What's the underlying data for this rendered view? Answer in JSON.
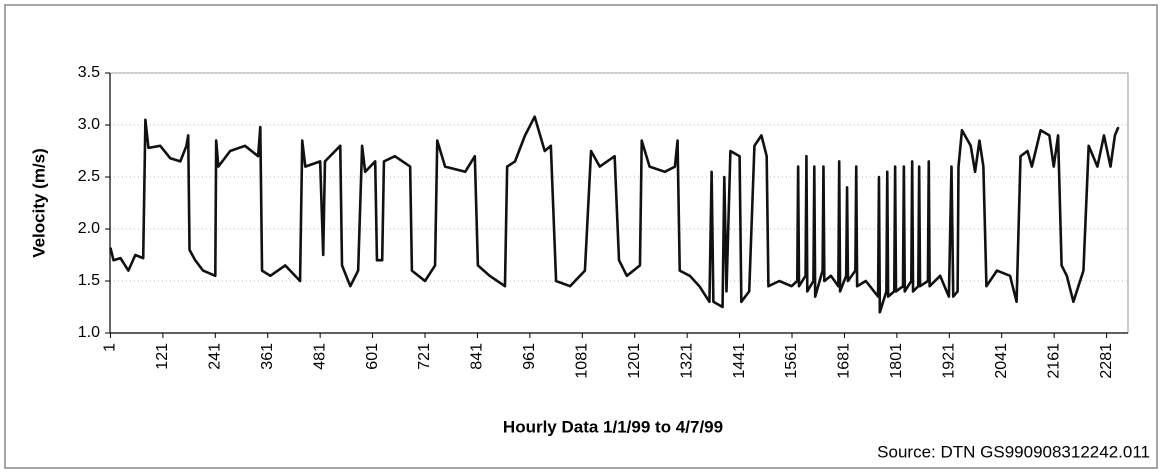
{
  "chart_data": {
    "type": "line",
    "y_label": "Velocity (m/s)",
    "x_label": "Hourly Data 1/1/99 to 4/7/99",
    "source": "Source: DTN GS990908312242.011",
    "xlim": [
      0,
      2330
    ],
    "ylim": [
      1.0,
      3.5
    ],
    "xticks": [
      1,
      121,
      241,
      361,
      481,
      601,
      721,
      841,
      961,
      1081,
      1201,
      1321,
      1441,
      1561,
      1681,
      1801,
      1921,
      2041,
      2161,
      2281
    ],
    "yticks": [
      {
        "value": 1.0,
        "label": "1.0"
      },
      1.5,
      {
        "value": 2.0,
        "label": "2.0"
      },
      2.5,
      {
        "value": 3.0,
        "label": "3.0"
      },
      3.5
    ],
    "grid": true,
    "series": [
      {
        "color": "#111111",
        "x": [
          1,
          8,
          24,
          42,
          58,
          76,
          81,
          88,
          115,
          138,
          161,
          175,
          179,
          182,
          195,
          213,
          241,
          243,
          248,
          275,
          309,
          339,
          344,
          348,
          367,
          401,
          435,
          440,
          447,
          481,
          488,
          492,
          527,
          531,
          550,
          568,
          577,
          584,
          607,
          611,
          623,
          627,
          652,
          687,
          691,
          721,
          744,
          749,
          767,
          813,
          835,
          842,
          869,
          904,
          909,
          927,
          950,
          972,
          995,
          1009,
          1021,
          1053,
          1087,
          1101,
          1121,
          1155,
          1165,
          1183,
          1213,
          1217,
          1235,
          1270,
          1293,
          1299,
          1304,
          1327,
          1349,
          1372,
          1377,
          1381,
          1402,
          1406,
          1411,
          1420,
          1441,
          1445,
          1463,
          1475,
          1491,
          1503,
          1507,
          1532,
          1560,
          1573,
          1575,
          1577,
          1592,
          1594,
          1596,
          1610,
          1612,
          1614,
          1631,
          1633,
          1635,
          1650,
          1667,
          1669,
          1671,
          1685,
          1687,
          1689,
          1706,
          1708,
          1710,
          1730,
          1758,
          1760,
          1762,
          1777,
          1779,
          1781,
          1795,
          1797,
          1799,
          1815,
          1817,
          1819,
          1834,
          1836,
          1838,
          1850,
          1852,
          1854,
          1872,
          1874,
          1876,
          1900,
          1920,
          1926,
          1930,
          1940,
          1942,
          1950,
          1970,
          1980,
          1990,
          1999,
          2006,
          2030,
          2060,
          2075,
          2084,
          2100,
          2110,
          2130,
          2150,
          2160,
          2170,
          2178,
          2190,
          2205,
          2228,
          2240,
          2260,
          2275,
          2290,
          2300,
          2308
        ],
        "values": [
          1.82,
          1.7,
          1.72,
          1.6,
          1.75,
          1.72,
          3.05,
          2.78,
          2.8,
          2.68,
          2.65,
          2.8,
          2.9,
          1.8,
          1.7,
          1.6,
          1.55,
          2.85,
          2.6,
          2.75,
          2.8,
          2.7,
          2.98,
          1.6,
          1.55,
          1.65,
          1.5,
          2.85,
          2.6,
          2.65,
          1.75,
          2.65,
          2.8,
          1.65,
          1.45,
          1.6,
          2.8,
          2.55,
          2.65,
          1.7,
          1.7,
          2.65,
          2.7,
          2.6,
          1.6,
          1.5,
          1.65,
          2.85,
          2.6,
          2.55,
          2.7,
          1.65,
          1.55,
          1.45,
          2.6,
          2.65,
          2.9,
          3.08,
          2.75,
          2.8,
          1.5,
          1.45,
          1.6,
          2.75,
          2.6,
          2.7,
          1.7,
          1.55,
          1.65,
          2.85,
          2.6,
          2.55,
          2.6,
          2.85,
          1.6,
          1.55,
          1.45,
          1.3,
          2.55,
          1.3,
          1.25,
          2.5,
          1.4,
          2.75,
          2.7,
          1.3,
          1.4,
          2.8,
          2.9,
          2.7,
          1.45,
          1.5,
          1.45,
          1.5,
          2.6,
          1.45,
          1.55,
          2.7,
          1.4,
          1.5,
          2.6,
          1.35,
          1.6,
          2.6,
          1.5,
          1.55,
          1.45,
          2.65,
          1.4,
          1.55,
          2.4,
          1.5,
          1.6,
          2.6,
          1.45,
          1.5,
          1.35,
          2.5,
          1.2,
          1.4,
          2.55,
          1.35,
          1.4,
          2.6,
          1.4,
          1.45,
          2.6,
          1.4,
          1.5,
          2.65,
          1.4,
          1.45,
          2.6,
          1.45,
          1.5,
          2.65,
          1.45,
          1.55,
          1.35,
          2.6,
          1.35,
          1.4,
          2.6,
          2.95,
          2.8,
          2.55,
          2.85,
          2.6,
          1.45,
          1.6,
          1.55,
          1.3,
          2.7,
          2.75,
          2.6,
          2.95,
          2.9,
          2.6,
          2.9,
          1.65,
          1.55,
          1.3,
          1.6,
          2.8,
          2.6,
          2.9,
          2.6,
          2.9,
          2.98
        ]
      }
    ]
  }
}
